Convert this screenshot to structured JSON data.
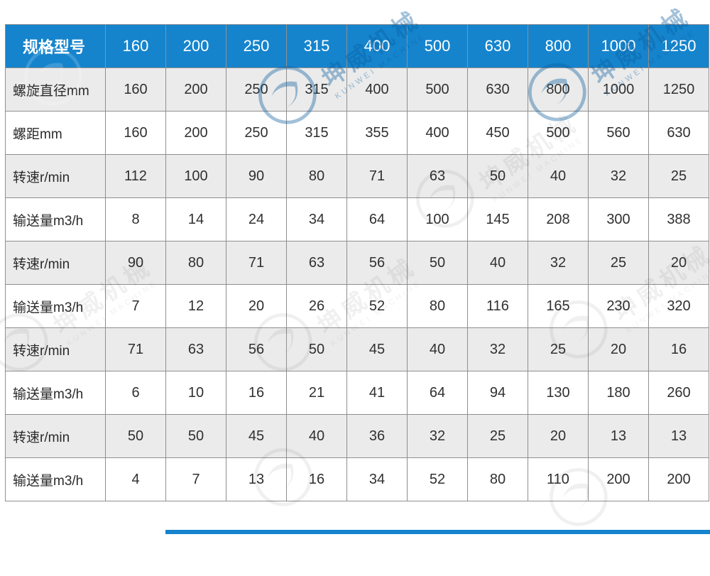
{
  "table": {
    "header": {
      "label": "规格型号",
      "columns": [
        "160",
        "200",
        "250",
        "315",
        "400",
        "500",
        "630",
        "800",
        "1000",
        "1250"
      ]
    },
    "rows": [
      {
        "label": "螺旋直径mm",
        "values": [
          "160",
          "200",
          "250",
          "315",
          "400",
          "500",
          "630",
          "800",
          "1000",
          "1250"
        ]
      },
      {
        "label": "螺距mm",
        "values": [
          "160",
          "200",
          "250",
          "315",
          "355",
          "400",
          "450",
          "500",
          "560",
          "630"
        ]
      },
      {
        "label": "转速r/min",
        "values": [
          "112",
          "100",
          "90",
          "80",
          "71",
          "63",
          "50",
          "40",
          "32",
          "25"
        ]
      },
      {
        "label": "输送量m3/h",
        "values": [
          "8",
          "14",
          "24",
          "34",
          "64",
          "100",
          "145",
          "208",
          "300",
          "388"
        ]
      },
      {
        "label": "转速r/min",
        "values": [
          "90",
          "80",
          "71",
          "63",
          "56",
          "50",
          "40",
          "32",
          "25",
          "20"
        ]
      },
      {
        "label": "输送量m3/h",
        "values": [
          "7",
          "12",
          "20",
          "26",
          "52",
          "80",
          "116",
          "165",
          "230",
          "320"
        ]
      },
      {
        "label": "转速r/min",
        "values": [
          "71",
          "63",
          "56",
          "50",
          "45",
          "40",
          "32",
          "25",
          "20",
          "16"
        ]
      },
      {
        "label": "输送量m3/h",
        "values": [
          "6",
          "10",
          "16",
          "21",
          "41",
          "64",
          "94",
          "130",
          "180",
          "260"
        ]
      },
      {
        "label": "转速r/min",
        "values": [
          "50",
          "50",
          "45",
          "40",
          "36",
          "32",
          "25",
          "20",
          "13",
          "13"
        ]
      },
      {
        "label": "输送量m3/h",
        "values": [
          "4",
          "7",
          "13",
          "16",
          "34",
          "52",
          "80",
          "110",
          "200",
          "200"
        ]
      }
    ]
  },
  "watermark": {
    "cn": "坤威机械",
    "en": "KUNWEI MACHINE"
  },
  "colors": {
    "header_bg": "#1584cd",
    "row_alt_bg": "#ebebeb",
    "border": "#8f8f8f",
    "body_text": "#303030",
    "header_text": "#ffffff"
  }
}
